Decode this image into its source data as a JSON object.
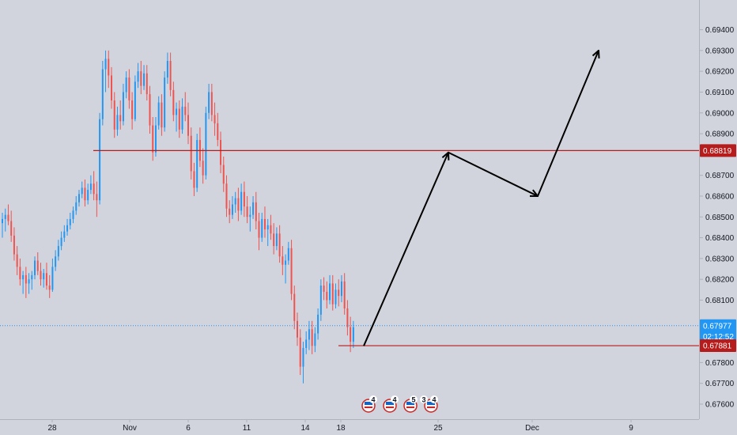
{
  "colors": {
    "background": "#d1d4dc",
    "up": "#2196f3",
    "down": "#ef5350",
    "level": "#b71c1c",
    "current": "#2196f3",
    "text": "#131722",
    "arrow": "#000000"
  },
  "chart_data": {
    "type": "candlestick",
    "x_ticks": [
      "28",
      "Nov",
      "6",
      "11",
      "14",
      "18",
      "25",
      "Dec",
      "9"
    ],
    "y_ticks": [
      "0.69400",
      "0.69300",
      "0.69200",
      "0.69100",
      "0.69000",
      "0.68900",
      "0.68700",
      "0.68600",
      "0.68500",
      "0.68400",
      "0.68300",
      "0.68200",
      "0.68100",
      "0.67800",
      "0.67700",
      "0.67600"
    ],
    "ylim": [
      0.6752,
      0.6952
    ],
    "grid": false,
    "resistance_level": 0.68819,
    "support_level": 0.67881,
    "last_price": 0.67977,
    "countdown": "02:12:52",
    "price_labels": {
      "resistance": "0.68819",
      "last": "0.67977",
      "support": "0.67881"
    },
    "projection_path": [
      {
        "x": "18",
        "y": 0.6788
      },
      {
        "x": "25",
        "y": 0.6881
      },
      {
        "x": "Dec",
        "y": 0.686
      },
      {
        "x": "9",
        "y": 0.693
      }
    ],
    "event_markers": [
      "4",
      "4",
      "5",
      "3",
      "4"
    ],
    "candles": [
      [
        0.6847,
        0.6852,
        0.684,
        0.6849
      ],
      [
        0.6849,
        0.6854,
        0.6843,
        0.6851
      ],
      [
        0.6851,
        0.6856,
        0.6846,
        0.6848
      ],
      [
        0.6848,
        0.6853,
        0.6838,
        0.6841
      ],
      [
        0.6841,
        0.6845,
        0.6829,
        0.6832
      ],
      [
        0.6832,
        0.6836,
        0.6822,
        0.6826
      ],
      [
        0.6826,
        0.683,
        0.6817,
        0.682
      ],
      [
        0.682,
        0.6824,
        0.6813,
        0.6822
      ],
      [
        0.6822,
        0.6826,
        0.6811,
        0.6818
      ],
      [
        0.6818,
        0.6823,
        0.6813,
        0.682
      ],
      [
        0.682,
        0.6824,
        0.6815,
        0.6822
      ],
      [
        0.6822,
        0.6831,
        0.682,
        0.6829
      ],
      [
        0.6829,
        0.6833,
        0.6822,
        0.6824
      ],
      [
        0.6824,
        0.6828,
        0.6817,
        0.682
      ],
      [
        0.682,
        0.6825,
        0.6816,
        0.6823
      ],
      [
        0.6823,
        0.6828,
        0.6815,
        0.6817
      ],
      [
        0.6817,
        0.6822,
        0.6811,
        0.6815
      ],
      [
        0.6815,
        0.683,
        0.6814,
        0.6826
      ],
      [
        0.6826,
        0.6834,
        0.6824,
        0.6831
      ],
      [
        0.6831,
        0.6839,
        0.6829,
        0.6836
      ],
      [
        0.6836,
        0.6843,
        0.6834,
        0.684
      ],
      [
        0.684,
        0.6846,
        0.6838,
        0.6843
      ],
      [
        0.6843,
        0.6849,
        0.6841,
        0.6846
      ],
      [
        0.6846,
        0.6852,
        0.6844,
        0.6849
      ],
      [
        0.6849,
        0.6855,
        0.6847,
        0.6853
      ],
      [
        0.6853,
        0.686,
        0.6851,
        0.6857
      ],
      [
        0.6857,
        0.6863,
        0.6855,
        0.6861
      ],
      [
        0.6861,
        0.6867,
        0.6859,
        0.6864
      ],
      [
        0.6864,
        0.6868,
        0.6855,
        0.6858
      ],
      [
        0.6858,
        0.6866,
        0.6856,
        0.6863
      ],
      [
        0.6863,
        0.687,
        0.6861,
        0.6866
      ],
      [
        0.6866,
        0.6872,
        0.6858,
        0.6861
      ],
      [
        0.6861,
        0.6867,
        0.685,
        0.6858
      ],
      [
        0.6858,
        0.69,
        0.6856,
        0.6897
      ],
      [
        0.6897,
        0.6925,
        0.6894,
        0.6921
      ],
      [
        0.6921,
        0.693,
        0.691,
        0.6926
      ],
      [
        0.6926,
        0.693,
        0.6912,
        0.6918
      ],
      [
        0.6918,
        0.6922,
        0.6902,
        0.6906
      ],
      [
        0.6906,
        0.691,
        0.6888,
        0.6892
      ],
      [
        0.6892,
        0.6903,
        0.6889,
        0.6899
      ],
      [
        0.6899,
        0.6906,
        0.6892,
        0.6896
      ],
      [
        0.6896,
        0.6914,
        0.6894,
        0.691
      ],
      [
        0.691,
        0.692,
        0.6907,
        0.6917
      ],
      [
        0.6917,
        0.6921,
        0.6902,
        0.6906
      ],
      [
        0.6906,
        0.691,
        0.6892,
        0.6897
      ],
      [
        0.6897,
        0.6918,
        0.6896,
        0.6915
      ],
      [
        0.6915,
        0.6924,
        0.6912,
        0.692
      ],
      [
        0.692,
        0.6925,
        0.6909,
        0.6913
      ],
      [
        0.6913,
        0.6923,
        0.6911,
        0.6919
      ],
      [
        0.6919,
        0.6923,
        0.6906,
        0.6909
      ],
      [
        0.6909,
        0.6913,
        0.689,
        0.6894
      ],
      [
        0.6894,
        0.6898,
        0.6877,
        0.6881
      ],
      [
        0.6881,
        0.6898,
        0.6879,
        0.6894
      ],
      [
        0.6894,
        0.6908,
        0.6892,
        0.6905
      ],
      [
        0.6905,
        0.6909,
        0.6889,
        0.6893
      ],
      [
        0.6893,
        0.692,
        0.6891,
        0.6917
      ],
      [
        0.6917,
        0.6929,
        0.6914,
        0.6925
      ],
      [
        0.6925,
        0.6929,
        0.6908,
        0.6911
      ],
      [
        0.6911,
        0.6915,
        0.6896,
        0.6899
      ],
      [
        0.6899,
        0.6905,
        0.6891,
        0.6902
      ],
      [
        0.6902,
        0.6906,
        0.6888,
        0.6892
      ],
      [
        0.6892,
        0.6907,
        0.689,
        0.6903
      ],
      [
        0.6903,
        0.691,
        0.6896,
        0.6899
      ],
      [
        0.6899,
        0.6905,
        0.6885,
        0.6889
      ],
      [
        0.6889,
        0.6893,
        0.6868,
        0.6872
      ],
      [
        0.6872,
        0.6876,
        0.686,
        0.6864
      ],
      [
        0.6864,
        0.689,
        0.6862,
        0.6887
      ],
      [
        0.6887,
        0.6893,
        0.6874,
        0.6877
      ],
      [
        0.6877,
        0.6883,
        0.6866,
        0.687
      ],
      [
        0.687,
        0.6903,
        0.6868,
        0.69
      ],
      [
        0.69,
        0.6914,
        0.6897,
        0.691
      ],
      [
        0.691,
        0.6914,
        0.6896,
        0.6899
      ],
      [
        0.6899,
        0.6905,
        0.6889,
        0.6895
      ],
      [
        0.6895,
        0.69,
        0.6884,
        0.6887
      ],
      [
        0.6887,
        0.6891,
        0.6871,
        0.6875
      ],
      [
        0.6875,
        0.6879,
        0.6862,
        0.6866
      ],
      [
        0.6866,
        0.687,
        0.685,
        0.6854
      ],
      [
        0.6854,
        0.6858,
        0.6847,
        0.6851
      ],
      [
        0.6851,
        0.686,
        0.6849,
        0.6856
      ],
      [
        0.6856,
        0.6862,
        0.6852,
        0.6859
      ],
      [
        0.6859,
        0.6864,
        0.6848,
        0.6853
      ],
      [
        0.6853,
        0.6866,
        0.6851,
        0.6862
      ],
      [
        0.6862,
        0.6867,
        0.685,
        0.6855
      ],
      [
        0.6855,
        0.686,
        0.6847,
        0.685
      ],
      [
        0.685,
        0.6855,
        0.6843,
        0.6851
      ],
      [
        0.6851,
        0.686,
        0.6849,
        0.6857
      ],
      [
        0.6857,
        0.6862,
        0.6844,
        0.6848
      ],
      [
        0.6848,
        0.6852,
        0.6834,
        0.684
      ],
      [
        0.684,
        0.6852,
        0.6838,
        0.6849
      ],
      [
        0.6849,
        0.6855,
        0.684,
        0.6844
      ],
      [
        0.6844,
        0.6849,
        0.6836,
        0.6846
      ],
      [
        0.6846,
        0.6851,
        0.6839,
        0.6842
      ],
      [
        0.6842,
        0.6847,
        0.6832,
        0.6836
      ],
      [
        0.6836,
        0.6845,
        0.6834,
        0.6842
      ],
      [
        0.6842,
        0.6846,
        0.6828,
        0.6831
      ],
      [
        0.6831,
        0.6836,
        0.6822,
        0.6827
      ],
      [
        0.6827,
        0.6832,
        0.6818,
        0.6829
      ],
      [
        0.6829,
        0.6838,
        0.6827,
        0.6835
      ],
      [
        0.6835,
        0.6839,
        0.681,
        0.6813
      ],
      [
        0.6813,
        0.6817,
        0.6796,
        0.68
      ],
      [
        0.68,
        0.6804,
        0.6788,
        0.6792
      ],
      [
        0.6792,
        0.6796,
        0.6774,
        0.6778
      ],
      [
        0.6778,
        0.679,
        0.677,
        0.6787
      ],
      [
        0.6787,
        0.6795,
        0.6784,
        0.6791
      ],
      [
        0.6791,
        0.68,
        0.6786,
        0.6796
      ],
      [
        0.6796,
        0.68,
        0.6784,
        0.6788
      ],
      [
        0.6788,
        0.6797,
        0.6785,
        0.6794
      ],
      [
        0.6794,
        0.6806,
        0.6791,
        0.6803
      ],
      [
        0.6803,
        0.682,
        0.68,
        0.6817
      ],
      [
        0.6817,
        0.6821,
        0.681,
        0.6814
      ],
      [
        0.6814,
        0.6819,
        0.6806,
        0.681
      ],
      [
        0.681,
        0.6822,
        0.6808,
        0.6818
      ],
      [
        0.6818,
        0.6822,
        0.6805,
        0.6808
      ],
      [
        0.6808,
        0.6818,
        0.6806,
        0.6815
      ],
      [
        0.6815,
        0.682,
        0.6807,
        0.6812
      ],
      [
        0.6812,
        0.6822,
        0.6809,
        0.6819
      ],
      [
        0.6819,
        0.6823,
        0.6803,
        0.6806
      ],
      [
        0.6806,
        0.681,
        0.6793,
        0.6797
      ],
      [
        0.6797,
        0.6802,
        0.6785,
        0.679
      ],
      [
        0.679,
        0.68,
        0.6787,
        0.6797
      ]
    ]
  }
}
